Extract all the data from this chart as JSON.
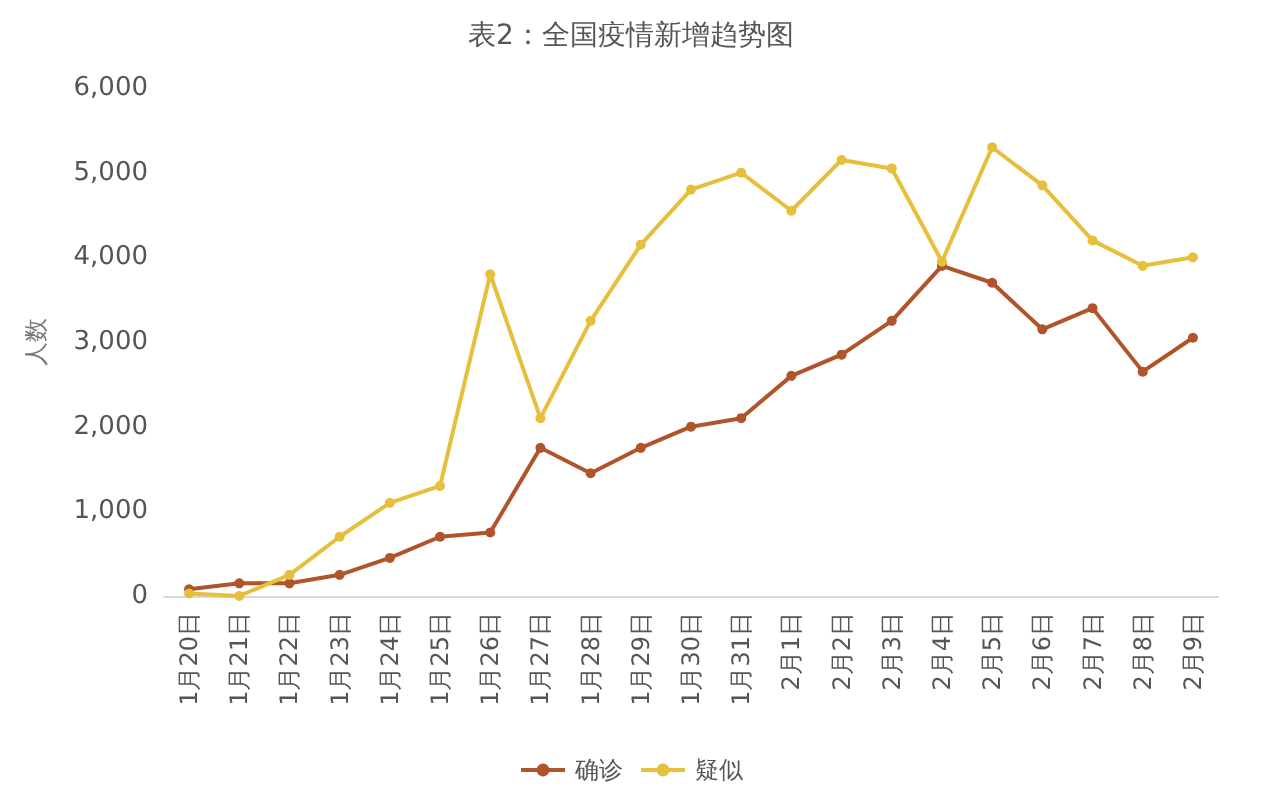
{
  "chart_data": {
    "type": "line",
    "title": "表2：全国疫情新增趋势图",
    "ylabel": "人数",
    "categories": [
      "1月20日",
      "1月21日",
      "1月22日",
      "1月23日",
      "1月24日",
      "1月25日",
      "1月26日",
      "1月27日",
      "1月28日",
      "1月29日",
      "1月30日",
      "1月31日",
      "2月1日",
      "2月2日",
      "2月3日",
      "2月4日",
      "2月5日",
      "2月6日",
      "2月7日",
      "2月8日",
      "2月9日"
    ],
    "series": [
      {
        "name": "确诊",
        "color": "#b0552b",
        "values": [
          80,
          150,
          150,
          250,
          450,
          700,
          750,
          1750,
          1450,
          1750,
          2000,
          2100,
          2600,
          2850,
          3250,
          3900,
          3700,
          3150,
          3400,
          2650,
          3050
        ]
      },
      {
        "name": "疑似",
        "color": "#e6bf3c",
        "values": [
          30,
          0,
          250,
          700,
          1100,
          1300,
          3800,
          2100,
          3250,
          4150,
          4800,
          5000,
          4550,
          5150,
          5050,
          3950,
          5300,
          4850,
          4200,
          3900,
          4000
        ]
      }
    ],
    "ylim": [
      0,
      6000
    ],
    "yticks": [
      0,
      {
        "value": 1000,
        "label": "1,000"
      },
      {
        "value": 2000,
        "label": "2,000"
      },
      {
        "value": 3000,
        "label": "3,000"
      },
      {
        "value": 4000,
        "label": "4,000"
      },
      {
        "value": 5000,
        "label": "5,000"
      },
      {
        "value": 6000,
        "label": "6,000"
      }
    ],
    "grid": false,
    "legend": "bottom",
    "marker": "circle",
    "line_style": "solid"
  }
}
